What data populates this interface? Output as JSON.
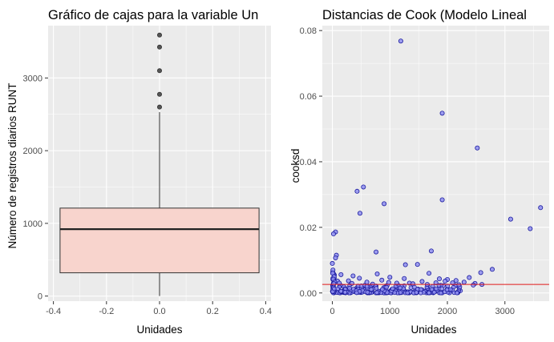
{
  "chart_data": [
    {
      "type": "box",
      "title": "Gráfico de cajas para la variable Un",
      "xlabel": "Unidades",
      "ylabel": "Número de registros diarios RUNT",
      "xlim": [
        -0.42,
        0.42
      ],
      "ylim": [
        -70,
        3720
      ],
      "xticks": [
        -0.4,
        -0.2,
        0.0,
        0.2,
        0.4
      ],
      "xtick_labels": [
        "-0.4",
        "-0.2",
        "0.0",
        "0.2",
        "0.4"
      ],
      "yticks": [
        0,
        1000,
        2000,
        3000
      ],
      "ytick_labels": [
        "0",
        "1000",
        "2000",
        "3000"
      ],
      "box": {
        "x_center": 0.0,
        "half_width": 0.375,
        "min": 0,
        "q1": 320,
        "median": 920,
        "q3": 1210,
        "whisker_high": 2530,
        "outliers": [
          2600,
          2775,
          3100,
          3425,
          3590
        ]
      },
      "fill_color": "#f8d4cd",
      "grid": true
    },
    {
      "type": "scatter",
      "title": "Distancias de Cook (Modelo Lineal",
      "xlabel": "Unidades",
      "ylabel": "cooksd",
      "xlim": [
        -175,
        3770
      ],
      "ylim": [
        -0.0025,
        0.0815
      ],
      "xticks": [
        0,
        1000,
        2000,
        3000
      ],
      "xtick_labels": [
        "0",
        "1000",
        "2000",
        "3000"
      ],
      "yticks": [
        0.0,
        0.02,
        0.04,
        0.06,
        0.08
      ],
      "ytick_labels": [
        "0.00",
        "0.02",
        "0.04",
        "0.06",
        "0.08"
      ],
      "threshold_line": 0.0026,
      "point_fill": "#8f8ff0",
      "point_stroke": "#1a1a9e",
      "line_color": "#e01a1a",
      "grid": true,
      "points": [
        [
          1190,
          0.0768
        ],
        [
          1910,
          0.0548
        ],
        [
          2520,
          0.0442
        ],
        [
          540,
          0.0323
        ],
        [
          430,
          0.031
        ],
        [
          3620,
          0.026
        ],
        [
          1910,
          0.0284
        ],
        [
          900,
          0.0272
        ],
        [
          480,
          0.0243
        ],
        [
          3100,
          0.0225
        ],
        [
          3440,
          0.0196
        ],
        [
          55,
          0.0186
        ],
        [
          20,
          0.018
        ],
        [
          1720,
          0.0128
        ],
        [
          760,
          0.0125
        ],
        [
          70,
          0.0115
        ],
        [
          55,
          0.0107
        ],
        [
          0,
          0.009
        ],
        [
          1480,
          0.0087
        ],
        [
          1270,
          0.0086
        ],
        [
          2780,
          0.0072
        ],
        [
          2580,
          0.0062
        ],
        [
          1680,
          0.006
        ],
        [
          780,
          0.0058
        ],
        [
          150,
          0.0056
        ],
        [
          360,
          0.0052
        ],
        [
          1000,
          0.0048
        ],
        [
          2380,
          0.0047
        ],
        [
          470,
          0.0045
        ],
        [
          1250,
          0.0044
        ],
        [
          1860,
          0.0043
        ],
        [
          2000,
          0.0041
        ],
        [
          860,
          0.0039
        ],
        [
          2150,
          0.0038
        ],
        [
          280,
          0.0037
        ],
        [
          1960,
          0.0036
        ],
        [
          1560,
          0.0035
        ],
        [
          2290,
          0.0033
        ],
        [
          980,
          0.0032
        ],
        [
          2090,
          0.0031
        ],
        [
          1340,
          0.003
        ],
        [
          2480,
          0.0029
        ],
        [
          2600,
          0.0026
        ],
        [
          2450,
          0.0024
        ],
        [
          600,
          0.0033
        ],
        [
          1120,
          0.003
        ],
        [
          1400,
          0.0028
        ],
        [
          1800,
          0.0031
        ],
        [
          340,
          0.0029
        ],
        [
          700,
          0.0027
        ],
        [
          1650,
          0.0026
        ],
        [
          2200,
          0.0025
        ],
        [
          10,
          0.007
        ],
        [
          5,
          0.006
        ],
        [
          30,
          0.005
        ],
        [
          15,
          0.0042
        ],
        [
          90,
          0.0036
        ],
        [
          40,
          0.0033
        ],
        [
          120,
          0.003
        ],
        [
          25,
          0.0028
        ]
      ],
      "dense_band": {
        "x_range": [
          0,
          2300
        ],
        "y_range": [
          0.0,
          0.0024
        ],
        "count": 260
      }
    }
  ]
}
